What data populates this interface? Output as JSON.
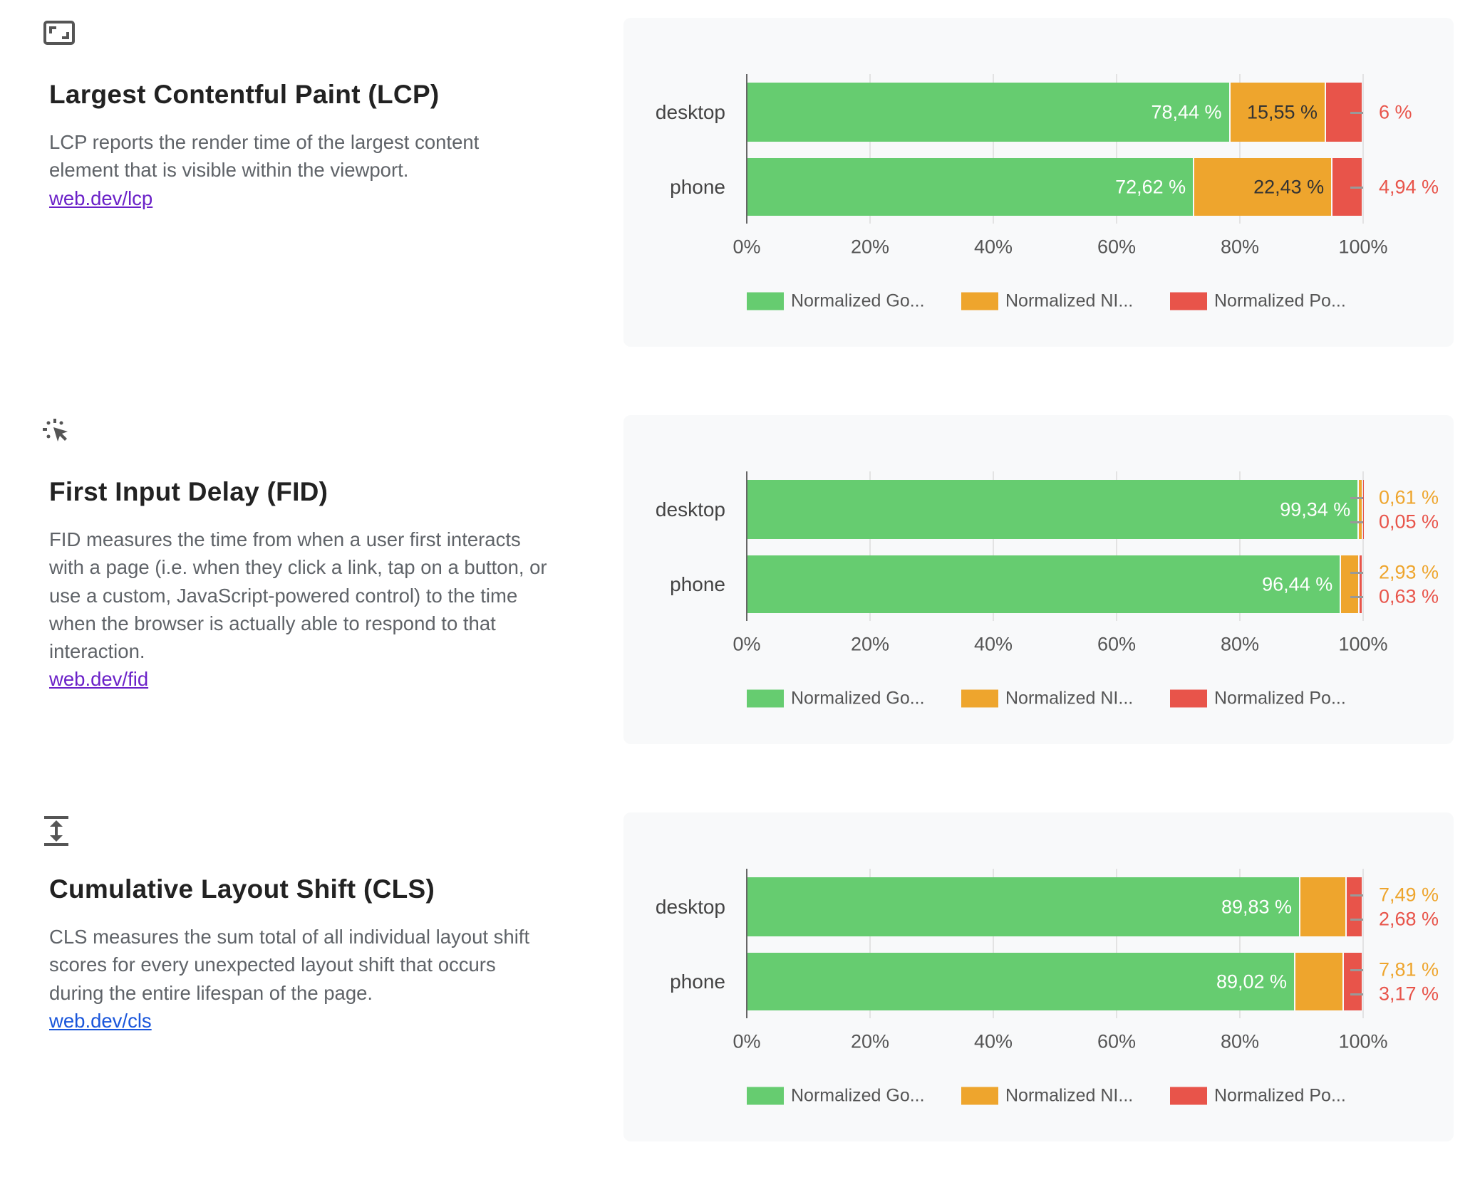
{
  "colors": {
    "good": "#66cc70",
    "ni": "#eea52d",
    "poor": "#e8544a"
  },
  "legend": [
    "Normalized Go...",
    "Normalized NI...",
    "Normalized Po..."
  ],
  "ticks": [
    "0%",
    "20%",
    "40%",
    "60%",
    "80%",
    "100%"
  ],
  "sections": [
    {
      "icon": "fullscreen-frame-icon",
      "title": "Largest Contentful Paint (LCP)",
      "description": "LCP reports the render time of the largest content element that is visible within the viewport.",
      "link": "web.dev/lcp",
      "chart_data": {
        "type": "bar",
        "orientation": "horizontal",
        "stacked": true,
        "xlim": [
          0,
          100
        ],
        "grid": true,
        "legend": "bottom",
        "categories": [
          "desktop",
          "phone"
        ],
        "series": [
          {
            "name": "Normalized Go...",
            "values": [
              78.44,
              72.62
            ],
            "labels": [
              "78,44 %",
              "72,62 %"
            ]
          },
          {
            "name": "Normalized NI...",
            "values": [
              15.55,
              22.43
            ],
            "labels": [
              "15,55 %",
              "22,43 %"
            ]
          },
          {
            "name": "Normalized Po...",
            "values": [
              6.0,
              4.94
            ],
            "labels": [
              "6 %",
              "4,94 %"
            ]
          }
        ]
      }
    },
    {
      "icon": "click-cursor-icon",
      "title": "First Input Delay (FID)",
      "description": "FID measures the time from when a user first interacts with a page (i.e. when they click a link, tap on a button, or use a custom, JavaScript-powered control) to the time when the browser is actually able to respond to that interaction.",
      "link": "web.dev/fid",
      "chart_data": {
        "type": "bar",
        "orientation": "horizontal",
        "stacked": true,
        "xlim": [
          0,
          100
        ],
        "grid": true,
        "legend": "bottom",
        "categories": [
          "desktop",
          "phone"
        ],
        "series": [
          {
            "name": "Normalized Go...",
            "values": [
              99.34,
              96.44
            ],
            "labels": [
              "99,34 %",
              "96,44 %"
            ]
          },
          {
            "name": "Normalized NI...",
            "values": [
              0.61,
              2.93
            ],
            "labels": [
              "0,61 %",
              "2,93 %"
            ]
          },
          {
            "name": "Normalized Po...",
            "values": [
              0.05,
              0.63
            ],
            "labels": [
              "0,05 %",
              "0,63 %"
            ]
          }
        ]
      }
    },
    {
      "icon": "vertical-resize-icon",
      "title": "Cumulative Layout Shift (CLS)",
      "description": "CLS measures the sum total of all individual layout shift scores for every unexpected layout shift that occurs during the entire lifespan of the page.",
      "link": "web.dev/cls",
      "chart_data": {
        "type": "bar",
        "orientation": "horizontal",
        "stacked": true,
        "xlim": [
          0,
          100
        ],
        "grid": true,
        "legend": "bottom",
        "categories": [
          "desktop",
          "phone"
        ],
        "series": [
          {
            "name": "Normalized Go...",
            "values": [
              89.83,
              89.02
            ],
            "labels": [
              "89,83 %",
              "89,02 %"
            ]
          },
          {
            "name": "Normalized NI...",
            "values": [
              7.49,
              7.81
            ],
            "labels": [
              "7,49 %",
              "7,81 %"
            ]
          },
          {
            "name": "Normalized Po...",
            "values": [
              2.68,
              3.17
            ],
            "labels": [
              "2,68 %",
              "3,17 %"
            ]
          }
        ]
      }
    }
  ]
}
